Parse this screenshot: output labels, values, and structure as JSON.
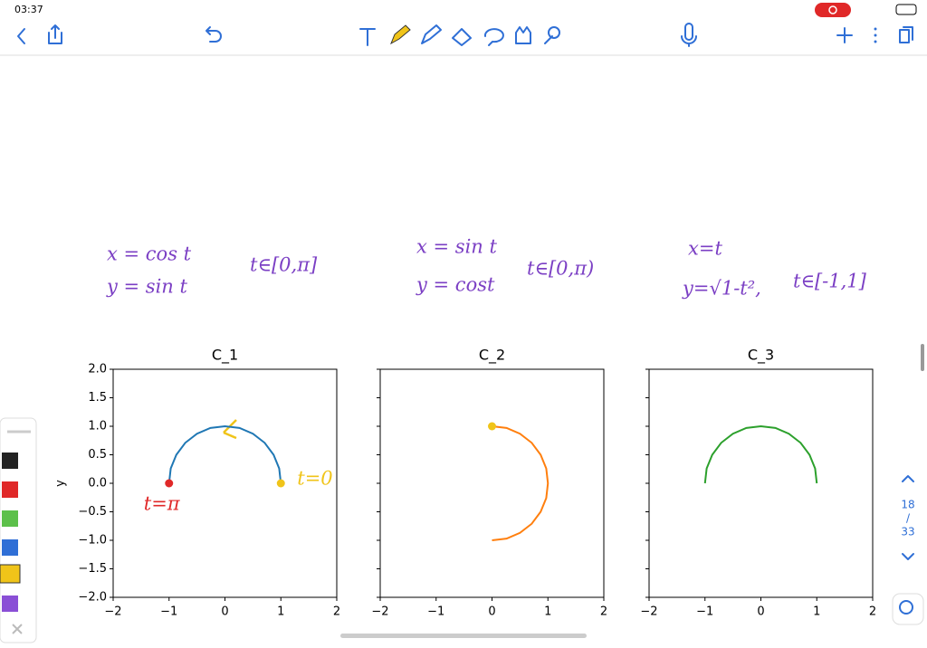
{
  "status_bar": {
    "time": "03:37"
  },
  "notes": [
    {
      "lines": [
        "x = cos t",
        "y = sin t"
      ],
      "range": "t∈[0,π]"
    },
    {
      "lines": [
        "x = sin t",
        "y = cost"
      ],
      "range": "t∈[0,π)"
    },
    {
      "lines": [
        "x=t",
        "y=√1-t²,"
      ],
      "range": "t∈[-1,1]"
    }
  ],
  "page_indicator": {
    "current": "18",
    "separator": "/",
    "total": "33"
  },
  "chart_data": [
    {
      "type": "line",
      "title": "C_1",
      "ylabel": "y",
      "color": "#1f77b4",
      "x": [
        1,
        0.97,
        0.87,
        0.71,
        0.5,
        0.26,
        0,
        -0.26,
        -0.5,
        -0.71,
        -0.87,
        -0.97,
        -1
      ],
      "values": [
        0,
        0.26,
        0.5,
        0.71,
        0.87,
        0.97,
        1,
        0.97,
        0.87,
        0.71,
        0.5,
        0.26,
        0
      ],
      "xlim": [
        -2,
        2
      ],
      "ylim": [
        -2,
        2
      ],
      "xticks": [
        {
          "value": -2,
          "label": "−2"
        },
        {
          "value": -1,
          "label": "−1"
        },
        0,
        1,
        2
      ],
      "yticks": [
        {
          "value": -2,
          "label": "−2.0"
        },
        {
          "value": -1.5,
          "label": "−1.5"
        },
        {
          "value": -1,
          "label": "−1.0"
        },
        {
          "value": -0.5,
          "label": "−0.5"
        },
        {
          "value": 0,
          "label": "0.0"
        },
        0.5,
        {
          "value": 1,
          "label": "1.0"
        },
        1.5,
        {
          "value": 2,
          "label": "2.0"
        }
      ],
      "annotations": [
        {
          "text": "t=π",
          "x": -1,
          "y": 0,
          "color": "#e02828"
        },
        {
          "text": "t=0",
          "x": 1,
          "y": 0,
          "color": "#f0c419"
        }
      ]
    },
    {
      "type": "line",
      "title": "C_2",
      "color": "#ff7f0e",
      "x": [
        0,
        0.26,
        0.5,
        0.71,
        0.87,
        0.97,
        1,
        0.97,
        0.87,
        0.71,
        0.5,
        0.26,
        0
      ],
      "values": [
        1,
        0.97,
        0.87,
        0.71,
        0.5,
        0.26,
        0,
        -0.26,
        -0.5,
        -0.71,
        -0.87,
        -0.97,
        -1
      ],
      "xlim": [
        -2,
        2
      ],
      "ylim": [
        -2,
        2
      ],
      "xticks": [
        {
          "value": -2,
          "label": "−2"
        },
        {
          "value": -1,
          "label": "−1"
        },
        0,
        1,
        2
      ],
      "yticks": [
        -2,
        -1.5,
        -1,
        -0.5,
        0,
        0.5,
        1,
        1.5,
        2
      ],
      "ytick_labels": false,
      "annotations": [
        {
          "x": 0,
          "y": 1,
          "color": "#f0c419"
        }
      ]
    },
    {
      "type": "line",
      "title": "C_3",
      "color": "#2ca02c",
      "x": [
        -1,
        -0.97,
        -0.87,
        -0.71,
        -0.5,
        -0.26,
        0,
        0.26,
        0.5,
        0.71,
        0.87,
        0.97,
        1
      ],
      "values": [
        0,
        0.26,
        0.5,
        0.71,
        0.87,
        0.97,
        1,
        0.97,
        0.87,
        0.71,
        0.5,
        0.26,
        0
      ],
      "xlim": [
        -2,
        2
      ],
      "ylim": [
        -2,
        2
      ],
      "xticks": [
        {
          "value": -2,
          "label": "−2"
        },
        {
          "value": -1,
          "label": "−1"
        },
        0,
        1,
        2
      ],
      "yticks": [
        -2,
        -1.5,
        -1,
        -0.5,
        0,
        0.5,
        1,
        1.5,
        2
      ],
      "ytick_labels": false
    }
  ]
}
